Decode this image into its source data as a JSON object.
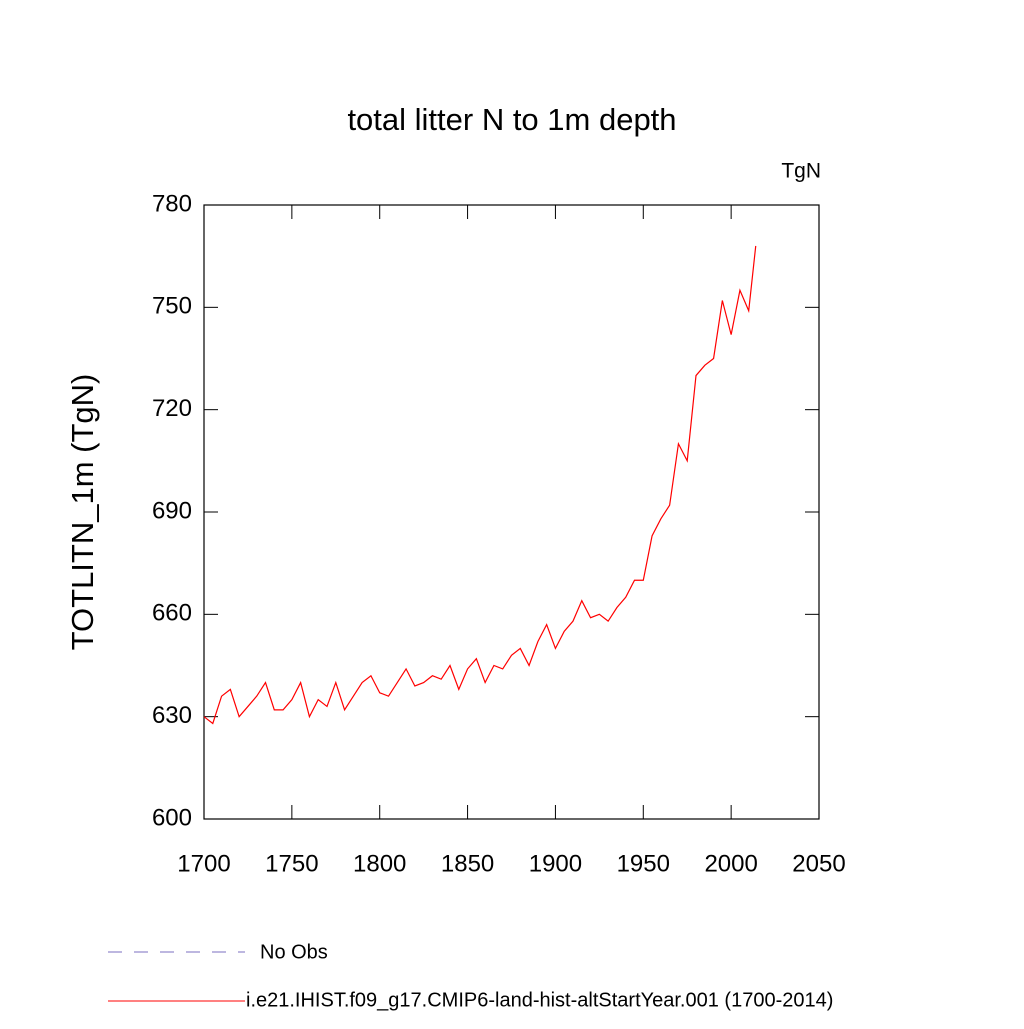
{
  "chart_data": {
    "type": "line",
    "title": "total litter N to 1m depth",
    "units": "TgN",
    "y_label": "TOTLITN_1m  (TgN)",
    "x": [
      1700,
      1705,
      1710,
      1715,
      1720,
      1725,
      1730,
      1735,
      1740,
      1745,
      1750,
      1755,
      1760,
      1765,
      1770,
      1775,
      1780,
      1785,
      1790,
      1795,
      1800,
      1805,
      1810,
      1815,
      1820,
      1825,
      1830,
      1835,
      1840,
      1845,
      1850,
      1855,
      1860,
      1865,
      1870,
      1875,
      1880,
      1885,
      1890,
      1895,
      1900,
      1905,
      1910,
      1915,
      1920,
      1925,
      1930,
      1935,
      1940,
      1945,
      1950,
      1955,
      1960,
      1965,
      1970,
      1975,
      1980,
      1985,
      1990,
      1995,
      2000,
      2005,
      2010,
      2014
    ],
    "series": [
      {
        "name": "i.e21.IHIST.f09_g17.CMIP6-land-hist-altStartYear.001 (1700-2014)",
        "color": "#ff0000",
        "values": [
          630,
          628,
          636,
          638,
          630,
          633,
          636,
          640,
          632,
          632,
          635,
          640,
          630,
          635,
          633,
          640,
          632,
          636,
          640,
          642,
          637,
          636,
          640,
          644,
          639,
          640,
          642,
          641,
          645,
          638,
          644,
          647,
          640,
          645,
          644,
          648,
          650,
          645,
          652,
          657,
          650,
          655,
          658,
          664,
          659,
          660,
          658,
          662,
          665,
          670,
          670,
          683,
          688,
          692,
          710,
          705,
          730,
          733,
          735,
          752,
          742,
          755,
          749,
          768
        ]
      }
    ],
    "reference": {
      "name": "No Obs",
      "color": "#7b6fc2",
      "dash": "dashed"
    },
    "xlim": [
      1700,
      2050
    ],
    "xticks": [
      1700,
      1750,
      1800,
      1850,
      1900,
      1950,
      2000,
      2050
    ],
    "ylim": [
      600,
      780
    ],
    "yticks": [
      600,
      630,
      660,
      690,
      720,
      750,
      780
    ]
  }
}
